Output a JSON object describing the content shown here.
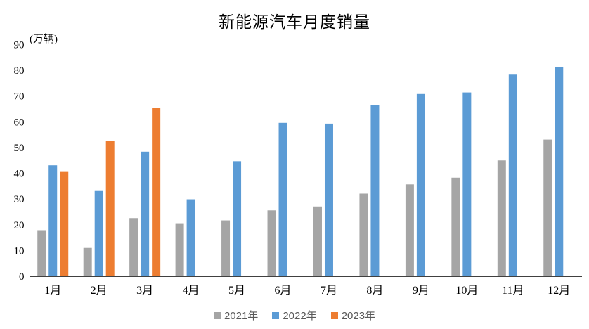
{
  "title": "新能源汽车月度销量",
  "y_axis_unit": "(万辆)",
  "legend": {
    "items": [
      "2021年",
      "2022年",
      "2023年"
    ]
  },
  "chart_data": {
    "type": "bar",
    "title": "新能源汽车月度销量",
    "ylabel": "(万辆)",
    "xlabel": "",
    "categories": [
      "1月",
      "2月",
      "3月",
      "4月",
      "5月",
      "6月",
      "7月",
      "8月",
      "9月",
      "10月",
      "11月",
      "12月"
    ],
    "series": [
      {
        "name": "2021年",
        "color": "#A5A5A5",
        "values": [
          17.9,
          11.0,
          22.6,
          20.6,
          21.7,
          25.6,
          27.1,
          32.1,
          35.7,
          38.3,
          45.0,
          53.1
        ]
      },
      {
        "name": "2022年",
        "color": "#5B9BD5",
        "values": [
          43.1,
          33.4,
          48.4,
          29.9,
          44.7,
          59.6,
          59.3,
          66.6,
          70.8,
          71.4,
          78.6,
          81.4
        ]
      },
      {
        "name": "2023年",
        "color": "#ED7D31",
        "values": [
          40.8,
          52.5,
          65.3,
          null,
          null,
          null,
          null,
          null,
          null,
          null,
          null,
          null
        ]
      }
    ],
    "ylim": [
      0,
      90
    ],
    "ytick_step": 10,
    "grid": false,
    "legend_position": "bottom",
    "axis_color": "#000000",
    "tick_label_color": "#000000"
  }
}
